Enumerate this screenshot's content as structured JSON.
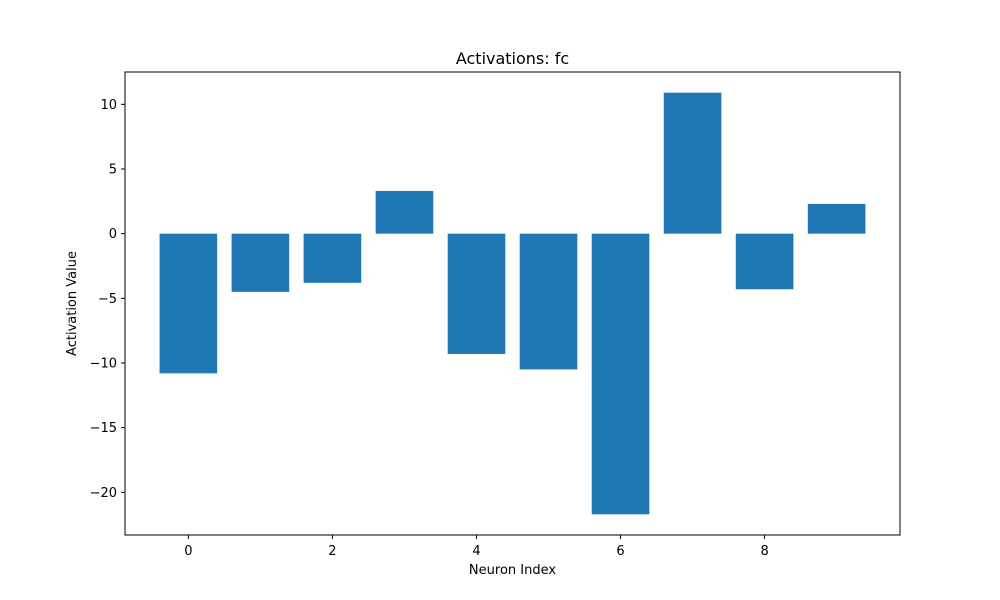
{
  "chart_data": {
    "type": "bar",
    "title": "Activations: fc",
    "xlabel": "Neuron Index",
    "ylabel": "Activation Value",
    "categories": [
      0,
      1,
      2,
      3,
      4,
      5,
      6,
      7,
      8,
      9
    ],
    "values": [
      -10.8,
      -4.5,
      -3.8,
      3.3,
      -9.3,
      -10.5,
      -21.7,
      10.9,
      -4.3,
      2.3
    ],
    "xlim": [
      -0.88,
      9.88
    ],
    "ylim": [
      -23.3,
      12.5
    ],
    "xticks": [
      0,
      2,
      4,
      6,
      8
    ],
    "xtick_labels": [
      "0",
      "2",
      "4",
      "6",
      "8"
    ],
    "yticks": [
      10,
      5,
      0,
      -5,
      -10,
      -15,
      -20
    ],
    "ytick_labels": [
      "10",
      "5",
      "0",
      "−5",
      "−10",
      "−15",
      "−20"
    ],
    "bar_color": "#1f77b4",
    "grid": false,
    "legend": false
  }
}
